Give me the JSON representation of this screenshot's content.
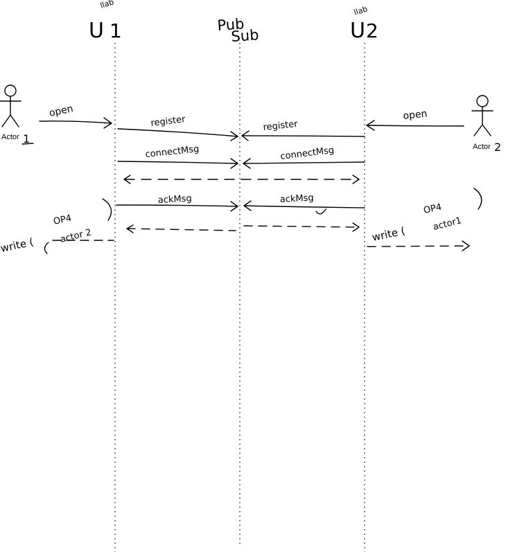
{
  "participants": {
    "collab1": {
      "name": "U",
      "superscript": "llab",
      "number": "1"
    },
    "pubsub": {
      "line1": "Pub",
      "line2": "Sub"
    },
    "collab2": {
      "name": "U",
      "superscript": "llab",
      "number": "2"
    }
  },
  "actors": {
    "actor1": {
      "label": "Actor",
      "number": "1"
    },
    "actor2": {
      "label": "Actor",
      "number": "2"
    }
  },
  "messages": {
    "open1": "open",
    "open2": "open",
    "register1": "register",
    "register2": "register",
    "connect1": "connectMsg",
    "connect2": "connectMsg",
    "ack1": "ackMsg",
    "ack2": "ackMsg",
    "write1": {
      "prefix": "write (",
      "top": "OP4",
      "bottom": "actor 2"
    },
    "write2": {
      "prefix": "write (",
      "top": "OP4",
      "bottom": "actor1"
    }
  }
}
